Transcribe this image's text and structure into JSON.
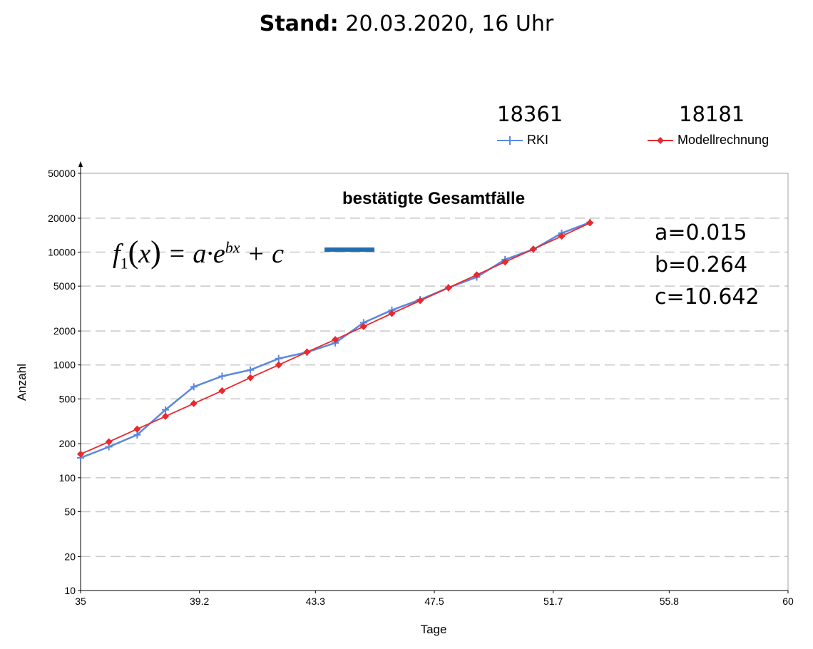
{
  "header": {
    "label": "Stand:",
    "value": "20.03.2020, 16 Uhr"
  },
  "latest_values": {
    "rki": "18361",
    "model": "18181"
  },
  "formula": {
    "f": "f",
    "sub": "1",
    "x": "x",
    "rhs": "= a·e",
    "exp": "bx",
    "tail": "+ c"
  },
  "params": {
    "a": "a=0.015",
    "b": "b=0.264",
    "c": "c=10.642"
  },
  "colors": {
    "rki": "#5b87df",
    "model": "#e8292e",
    "formula_line": "#1f6fb0",
    "grid": "#c8c8c8"
  },
  "chart_data": {
    "type": "line",
    "title": "bestätigte Gesamtfälle",
    "xlabel": "Tage",
    "ylabel": "Anzahl",
    "yscale": "log",
    "xlim": [
      35,
      60
    ],
    "ylim": [
      10,
      50000
    ],
    "x_ticks": [
      "35",
      "39.2",
      "43.3",
      "47.5",
      "51.7",
      "55.8",
      "60"
    ],
    "y_ticks": [
      10,
      20,
      50,
      100,
      200,
      500,
      1000,
      2000,
      5000,
      10000,
      20000,
      50000
    ],
    "legend_position": "top-right",
    "grid": "horizontal dashed",
    "series": [
      {
        "name": "RKI",
        "marker": "plus",
        "x": [
          35,
          36,
          37,
          38,
          39,
          40,
          41,
          42,
          43,
          44,
          45,
          46,
          47,
          48,
          49,
          50,
          51,
          52,
          53
        ],
        "values": [
          150,
          188,
          240,
          400,
          640,
          795,
          903,
          1139,
          1296,
          1567,
          2369,
          3062,
          3795,
          4838,
          6012,
          8604,
          10582,
          14740,
          18361
        ]
      },
      {
        "name": "Modellrechnung",
        "marker": "diamond",
        "x": [
          35,
          36,
          37,
          38,
          39,
          40,
          41,
          42,
          43,
          44,
          45,
          46,
          47,
          48,
          49,
          50,
          51,
          52,
          53
        ],
        "values": [
          162,
          208,
          270,
          350,
          455,
          590,
          770,
          1000,
          1300,
          1680,
          2190,
          2860,
          3720,
          4830,
          6290,
          8180,
          10640,
          13850,
          18181
        ]
      }
    ]
  }
}
